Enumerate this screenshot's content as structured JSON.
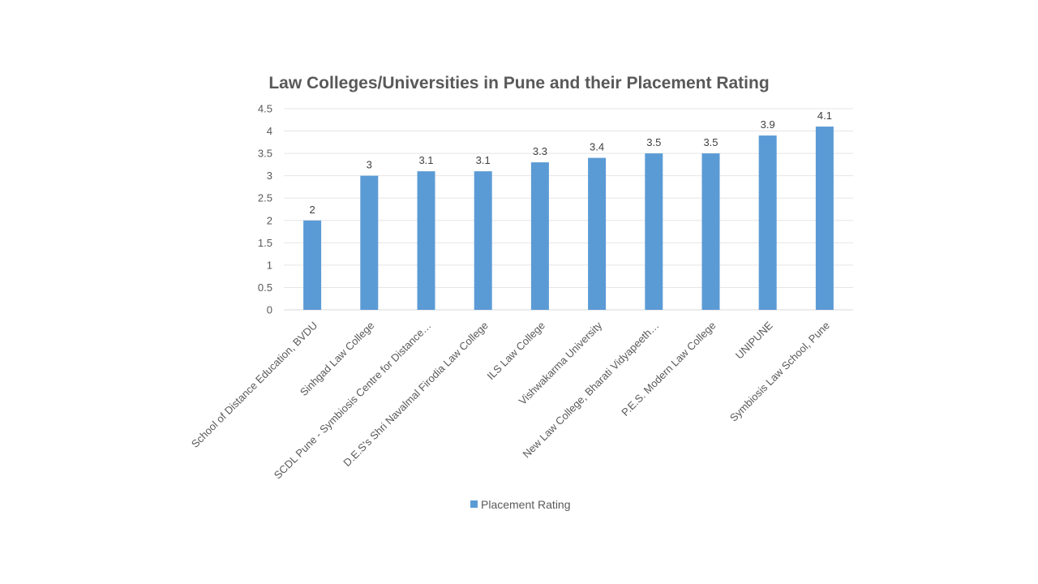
{
  "chart_data": {
    "type": "bar",
    "title": "Law Colleges/Universities in Pune and their Placement Rating",
    "categories": [
      "School of Distance Education, BVDU",
      "Sinhgad Law College",
      "SCDL Pune - Symbiosis Centre for Distance…",
      "D.E.S's Shri Navalmal Firodia Law College",
      "ILS Law College",
      "Vishwakarma University",
      "New Law College, Bharati Vidyapeeth…",
      "P.E.S. Modern Law College",
      "UNIPUNE",
      "Symbiosis Law School, Pune"
    ],
    "series": [
      {
        "name": "Placement Rating",
        "values": [
          2,
          3,
          3.1,
          3.1,
          3.3,
          3.4,
          3.5,
          3.5,
          3.9,
          4.1
        ],
        "color": "#5B9BD5"
      }
    ],
    "y_ticks": [
      "0",
      "0.5",
      "1",
      "1.5",
      "2",
      "2.5",
      "3",
      "3.5",
      "4",
      "4.5"
    ],
    "ylim": [
      0,
      4.5
    ],
    "grid": true,
    "data_labels": true,
    "legend_position": "bottom"
  }
}
